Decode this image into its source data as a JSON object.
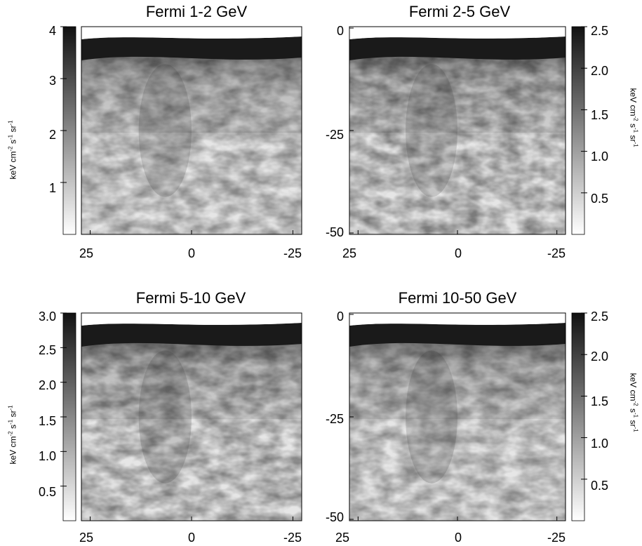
{
  "chart_data": [
    {
      "type": "heatmap",
      "title": "Fermi 1-2 GeV",
      "x_ticks": [
        "25",
        "0",
        "-25"
      ],
      "y_ticks": [],
      "colorbar": {
        "side": "left",
        "ticks": [
          "4",
          "3",
          "2",
          "1"
        ],
        "range": [
          0,
          4
        ],
        "label": "keV cm^-2 s^-1 sr^-1"
      }
    },
    {
      "type": "heatmap",
      "title": "Fermi 2-5 GeV",
      "x_ticks": [
        "25",
        "0",
        "-25"
      ],
      "y_ticks": [
        "0",
        "-25",
        "-50"
      ],
      "colorbar": {
        "side": "right",
        "ticks": [
          "2.5",
          "2.0",
          "1.5",
          "1.0",
          "0.5"
        ],
        "range": [
          0,
          2.5
        ],
        "label": "keV cm^-2 s^-1 sr^-1"
      }
    },
    {
      "type": "heatmap",
      "title": "Fermi 5-10 GeV",
      "x_ticks": [
        "25",
        "0",
        "-25"
      ],
      "y_ticks": [],
      "colorbar": {
        "side": "left",
        "ticks": [
          "3.0",
          "2.5",
          "2.0",
          "1.5",
          "1.0",
          "0.5"
        ],
        "range": [
          0,
          3
        ],
        "label": "keV cm^-2 s^-1 sr^-1"
      }
    },
    {
      "type": "heatmap",
      "title": "Fermi 10-50 GeV",
      "x_ticks": [
        "25",
        "0",
        "-25"
      ],
      "y_ticks": [
        "0",
        "-25",
        "-50"
      ],
      "colorbar": {
        "side": "right",
        "ticks": [
          "2.5",
          "2.0",
          "1.5",
          "1.0",
          "0.5"
        ],
        "range": [
          0,
          2.5
        ],
        "label": "keV cm^-2 s^-1 sr^-1"
      }
    }
  ],
  "unit_label": {
    "base1": "keV cm",
    "exp1": "-2",
    "base2": " s",
    "exp2": "-1",
    "base3": " sr",
    "exp3": "-1"
  },
  "colors": {
    "low": "#ffffff",
    "high": "#111111"
  }
}
